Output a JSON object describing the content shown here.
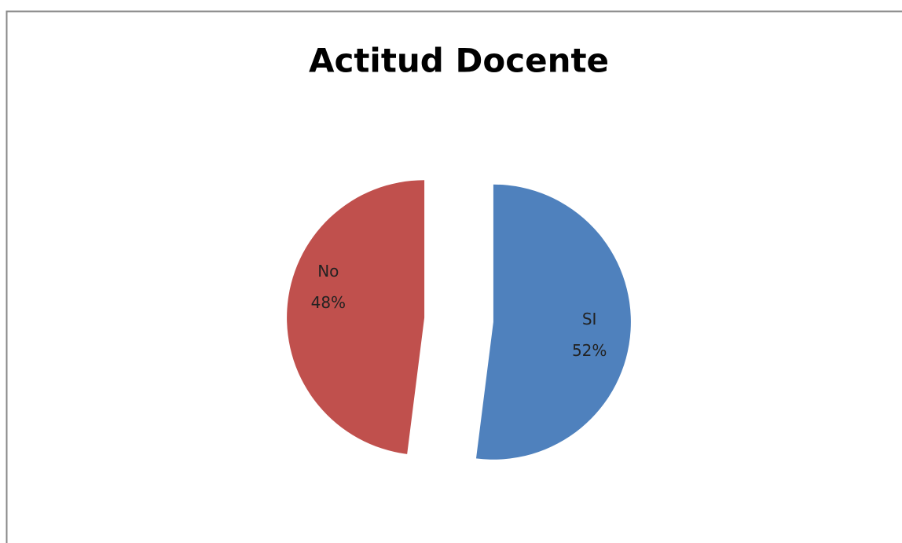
{
  "chart_data": {
    "type": "pie",
    "title": "Actitud Docente",
    "categories": [
      "SI",
      "No"
    ],
    "values": [
      52,
      48
    ],
    "value_labels": [
      "52%",
      "48%"
    ],
    "colors": [
      "#4f81bd",
      "#c0504d"
    ]
  }
}
